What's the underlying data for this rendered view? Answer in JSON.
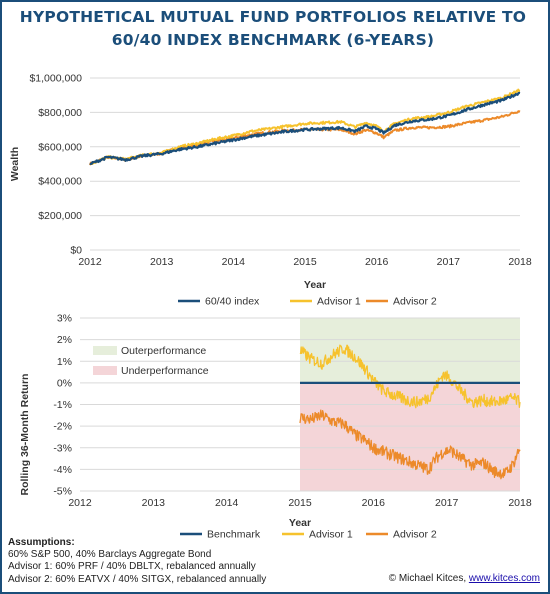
{
  "title_line1": "HYPOTHETICAL MUTUAL FUND PORTFOLIOS RELATIVE TO",
  "title_line2": "60/40 INDEX BENCHMARK (6-YEARS)",
  "colors": {
    "index": "#1b4e7a",
    "advisor1": "#f6c22d",
    "advisor2": "#ec8a2a",
    "outer": "#e6eedb",
    "under": "#f4d5d8",
    "frame": "#1b4e7a"
  },
  "chart_data": [
    {
      "type": "line",
      "title": "",
      "xlabel": "Year",
      "ylabel": "Wealth",
      "x_ticks": [
        "2012",
        "2013",
        "2014",
        "2015",
        "2016",
        "2017",
        "2018"
      ],
      "y_ticks": [
        "$0",
        "$200,000",
        "$400,000",
        "$600,000",
        "$800,000",
        "$1,000,000"
      ],
      "ylim": [
        0,
        1000000
      ],
      "xlim": [
        2012,
        2018
      ],
      "legend": [
        "60/40 index",
        "Advisor 1",
        "Advisor 2"
      ],
      "legend_position": "bottom",
      "x": [
        2012.0,
        2012.25,
        2012.5,
        2012.75,
        2013.0,
        2013.25,
        2013.5,
        2013.75,
        2014.0,
        2014.25,
        2014.5,
        2014.75,
        2015.0,
        2015.25,
        2015.5,
        2015.7,
        2015.85,
        2016.0,
        2016.1,
        2016.25,
        2016.5,
        2016.75,
        2017.0,
        2017.25,
        2017.5,
        2017.75,
        2018.0
      ],
      "series": [
        {
          "name": "60/40 index",
          "values": [
            500000,
            540000,
            525000,
            548000,
            560000,
            585000,
            600000,
            620000,
            640000,
            660000,
            675000,
            690000,
            700000,
            705000,
            710000,
            690000,
            720000,
            705000,
            680000,
            725000,
            750000,
            760000,
            780000,
            815000,
            845000,
            870000,
            915000
          ]
        },
        {
          "name": "Advisor 1",
          "values": [
            500000,
            540000,
            528000,
            552000,
            565000,
            600000,
            620000,
            645000,
            665000,
            690000,
            705000,
            720000,
            735000,
            740000,
            745000,
            715000,
            740000,
            720000,
            690000,
            735000,
            765000,
            775000,
            800000,
            835000,
            860000,
            885000,
            930000
          ]
        },
        {
          "name": "Advisor 2",
          "values": [
            500000,
            540000,
            525000,
            548000,
            562000,
            595000,
            612000,
            635000,
            650000,
            670000,
            685000,
            695000,
            700000,
            700000,
            700000,
            675000,
            698000,
            680000,
            655000,
            695000,
            712000,
            712000,
            718000,
            738000,
            755000,
            775000,
            810000
          ]
        }
      ]
    },
    {
      "type": "line",
      "title": "",
      "xlabel": "Year",
      "ylabel": "Rolling 36-Month Return",
      "x_ticks": [
        "2012",
        "2013",
        "2014",
        "2015",
        "2016",
        "2017",
        "2018"
      ],
      "y_ticks": [
        "3%",
        "2%",
        "1%",
        "0%",
        "-1%",
        "-2%",
        "-3%",
        "-4%",
        "-5%"
      ],
      "ylim": [
        -5,
        3
      ],
      "xlim": [
        2012,
        2018
      ],
      "legend": [
        "Benchmark",
        "Advisor 1",
        "Advisor 2"
      ],
      "legend_position": "bottom",
      "shaded_regions": [
        {
          "label": "Outerperformance",
          "x_range": [
            2015,
            2018
          ],
          "y_range": [
            0,
            3
          ]
        },
        {
          "label": "Underperformance",
          "x_range": [
            2015,
            2018
          ],
          "y_range": [
            -5,
            0
          ]
        }
      ],
      "x": [
        2015.0,
        2015.15,
        2015.3,
        2015.45,
        2015.6,
        2015.75,
        2015.9,
        2016.0,
        2016.15,
        2016.3,
        2016.45,
        2016.6,
        2016.75,
        2016.85,
        2016.95,
        2017.05,
        2017.2,
        2017.35,
        2017.5,
        2017.65,
        2017.8,
        2017.9,
        2018.0
      ],
      "series": [
        {
          "name": "Benchmark",
          "values": [
            0,
            0,
            0,
            0,
            0,
            0,
            0,
            0,
            0,
            0,
            0,
            0,
            0,
            0,
            0,
            0,
            0,
            0,
            0,
            0,
            0,
            0,
            0
          ]
        },
        {
          "name": "Advisor 1",
          "values": [
            1.5,
            1.1,
            0.9,
            1.3,
            1.6,
            1.2,
            0.6,
            0.1,
            -0.4,
            -0.6,
            -0.8,
            -0.9,
            -0.7,
            -0.2,
            0.4,
            0.2,
            -0.4,
            -0.9,
            -0.8,
            -0.9,
            -0.8,
            -0.7,
            -0.9
          ]
        },
        {
          "name": "Advisor 2",
          "values": [
            -1.6,
            -1.7,
            -1.5,
            -1.8,
            -1.9,
            -2.4,
            -2.7,
            -3.0,
            -3.2,
            -3.4,
            -3.6,
            -3.8,
            -4.0,
            -3.5,
            -3.2,
            -3.1,
            -3.5,
            -3.8,
            -3.7,
            -4.1,
            -4.2,
            -3.8,
            -3.0
          ]
        }
      ]
    }
  ],
  "notes": {
    "heading": "Assumptions:",
    "line1": "60% S&P 500, 40% Barclays Aggregate Bond",
    "line2": "Advisor 1: 60% PRF / 40% DBLTX, rebalanced annually",
    "line3": "Advisor 2: 60% EATVX / 40% SITGX, rebalanced annually"
  },
  "credit": {
    "prefix": "© Michael Kitces, ",
    "link": "www.kitces.com"
  }
}
